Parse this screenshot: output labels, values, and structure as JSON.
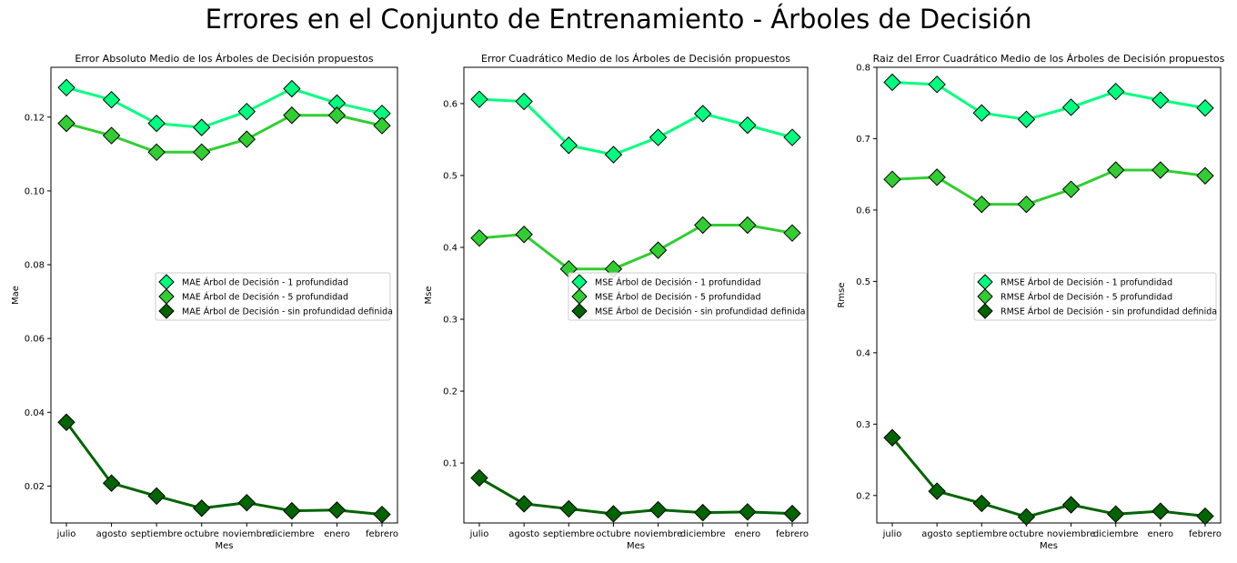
{
  "figure_title": "Errores en el Conjunto de Entrenamiento - Árboles de Decisión",
  "colors": {
    "series_1": "#00ff7f",
    "series_2": "#32cd32",
    "series_3": "#006400",
    "line_1": "#00ff7f",
    "line_2": "#32cd32",
    "line_3": "#006400",
    "marker_edge": "#000000"
  },
  "chart_data": [
    {
      "type": "line",
      "title": "Error Absoluto Medio de los Árboles de Decisión propuestos",
      "xlabel": "Mes",
      "ylabel": "Mae",
      "categories": [
        "julio",
        "agosto",
        "septiembre",
        "octubre",
        "noviembre",
        "diciembre",
        "enero",
        "febrero"
      ],
      "ylim": [
        0.01,
        0.1335
      ],
      "yticks": [
        0.02,
        0.04,
        0.06,
        0.08,
        0.1,
        0.12
      ],
      "ytick_labels": [
        "0.02",
        "0.04",
        "0.06",
        "0.08",
        "0.10",
        "0.12"
      ],
      "legend_position": "center-right",
      "grid": false,
      "series": [
        {
          "name": "MAE Árbol de Decisión - 1 profundidad",
          "values": [
            0.128,
            0.1247,
            0.1183,
            0.1172,
            0.1215,
            0.1277,
            0.1238,
            0.121
          ]
        },
        {
          "name": "MAE Árbol de Decisión - 5 profundidad",
          "values": [
            0.1183,
            0.115,
            0.1105,
            0.1105,
            0.114,
            0.1205,
            0.1205,
            0.1177
          ]
        },
        {
          "name": "MAE Árbol de Decisión - sin profundidad definida",
          "values": [
            0.0373,
            0.0208,
            0.0173,
            0.014,
            0.0155,
            0.0133,
            0.0135,
            0.0123
          ]
        }
      ]
    },
    {
      "type": "line",
      "title": "Error Cuadrático Medio de los Árboles de Decisión propuestos",
      "xlabel": "Mes",
      "ylabel": "Mse",
      "categories": [
        "julio",
        "agosto",
        "septiembre",
        "octubre",
        "noviembre",
        "diciembre",
        "enero",
        "febrero"
      ],
      "ylim": [
        0.0166,
        0.6505
      ],
      "yticks": [
        0.1,
        0.2,
        0.3,
        0.4,
        0.5,
        0.6
      ],
      "ytick_labels": [
        "0.1",
        "0.2",
        "0.3",
        "0.4",
        "0.5",
        "0.6"
      ],
      "legend_position": "center-right",
      "grid": false,
      "series": [
        {
          "name": "MSE Árbol de Decisión - 1 profundidad",
          "values": [
            0.606,
            0.603,
            0.542,
            0.529,
            0.553,
            0.586,
            0.57,
            0.553
          ]
        },
        {
          "name": "MSE Árbol de Decisión - 5 profundidad",
          "values": [
            0.413,
            0.418,
            0.37,
            0.37,
            0.396,
            0.431,
            0.431,
            0.42
          ]
        },
        {
          "name": "MSE Árbol de Decisión - sin profundidad definida",
          "values": [
            0.0793,
            0.0433,
            0.0363,
            0.0293,
            0.035,
            0.031,
            0.032,
            0.0297
          ]
        }
      ]
    },
    {
      "type": "line",
      "title": "Raiz del Error Cuadrático Medio de los Árboles de Decisión propuestos",
      "xlabel": "Mes",
      "ylabel": "Rmse",
      "categories": [
        "julio",
        "agosto",
        "septiembre",
        "octubre",
        "noviembre",
        "diciembre",
        "enero",
        "febrero"
      ],
      "ylim": [
        0.1615,
        0.8
      ],
      "yticks": [
        0.2,
        0.3,
        0.4,
        0.5,
        0.6,
        0.7,
        0.8
      ],
      "ytick_labels": [
        "0.2",
        "0.3",
        "0.4",
        "0.5",
        "0.6",
        "0.7",
        "0.8"
      ],
      "legend_position": "center-right",
      "grid": false,
      "series": [
        {
          "name": "RMSE Árbol de Decisión - 1 profundidad",
          "values": [
            0.779,
            0.776,
            0.736,
            0.727,
            0.744,
            0.766,
            0.754,
            0.743
          ]
        },
        {
          "name": "RMSE Árbol de Decisión - 5 profundidad",
          "values": [
            0.643,
            0.646,
            0.608,
            0.608,
            0.629,
            0.656,
            0.656,
            0.648
          ]
        },
        {
          "name": "RMSE Árbol de Decisión - sin profundidad definida",
          "values": [
            0.281,
            0.206,
            0.189,
            0.17,
            0.187,
            0.174,
            0.178,
            0.171
          ]
        }
      ]
    }
  ]
}
